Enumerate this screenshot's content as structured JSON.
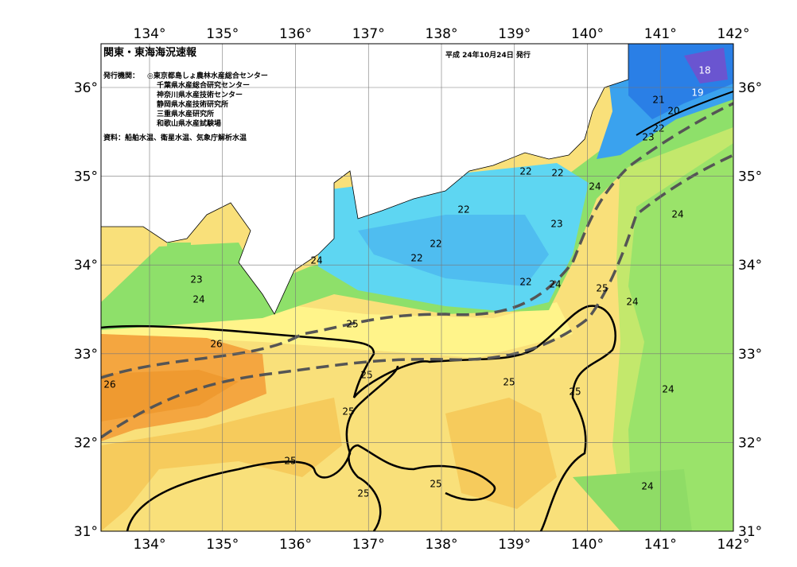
{
  "header": {
    "title": "関東・東海海況速報",
    "date": "平成 24年10月24日 発行",
    "issuer_label": "発行機関：",
    "issuers": [
      "◎東京都島しょ農林水産総合センター",
      "千葉県水産総合研究センター",
      "神奈川県水産技術センター",
      "静岡県水産技術研究所",
      "三重県水産研究所",
      "和歌山県水産試験場"
    ],
    "source": "資料：船舶水温、衛星水温、気象庁解析水温"
  },
  "map": {
    "lon_ticks": [
      {
        "value": 134,
        "label": "134°"
      },
      {
        "value": 135,
        "label": "135°"
      },
      {
        "value": 136,
        "label": "136°"
      },
      {
        "value": 137,
        "label": "137°"
      },
      {
        "value": 138,
        "label": "138°"
      },
      {
        "value": 139,
        "label": "139°"
      },
      {
        "value": 140,
        "label": "140°"
      },
      {
        "value": 141,
        "label": "141°"
      },
      {
        "value": 142,
        "label": "142°"
      }
    ],
    "lat_ticks": [
      {
        "value": 31,
        "label": "31°"
      },
      {
        "value": 32,
        "label": "32°"
      },
      {
        "value": 33,
        "label": "33°"
      },
      {
        "value": 34,
        "label": "34°"
      },
      {
        "value": 35,
        "label": "35°"
      },
      {
        "value": 36,
        "label": "36°"
      }
    ],
    "contour_labels": [
      18,
      19,
      21,
      20,
      22,
      23,
      22,
      22,
      24,
      22,
      23,
      24,
      22,
      22,
      24,
      23,
      22,
      24,
      25,
      24,
      24,
      25,
      26,
      25,
      25,
      26,
      25,
      24,
      25,
      25,
      25,
      24,
      25
    ]
  }
}
